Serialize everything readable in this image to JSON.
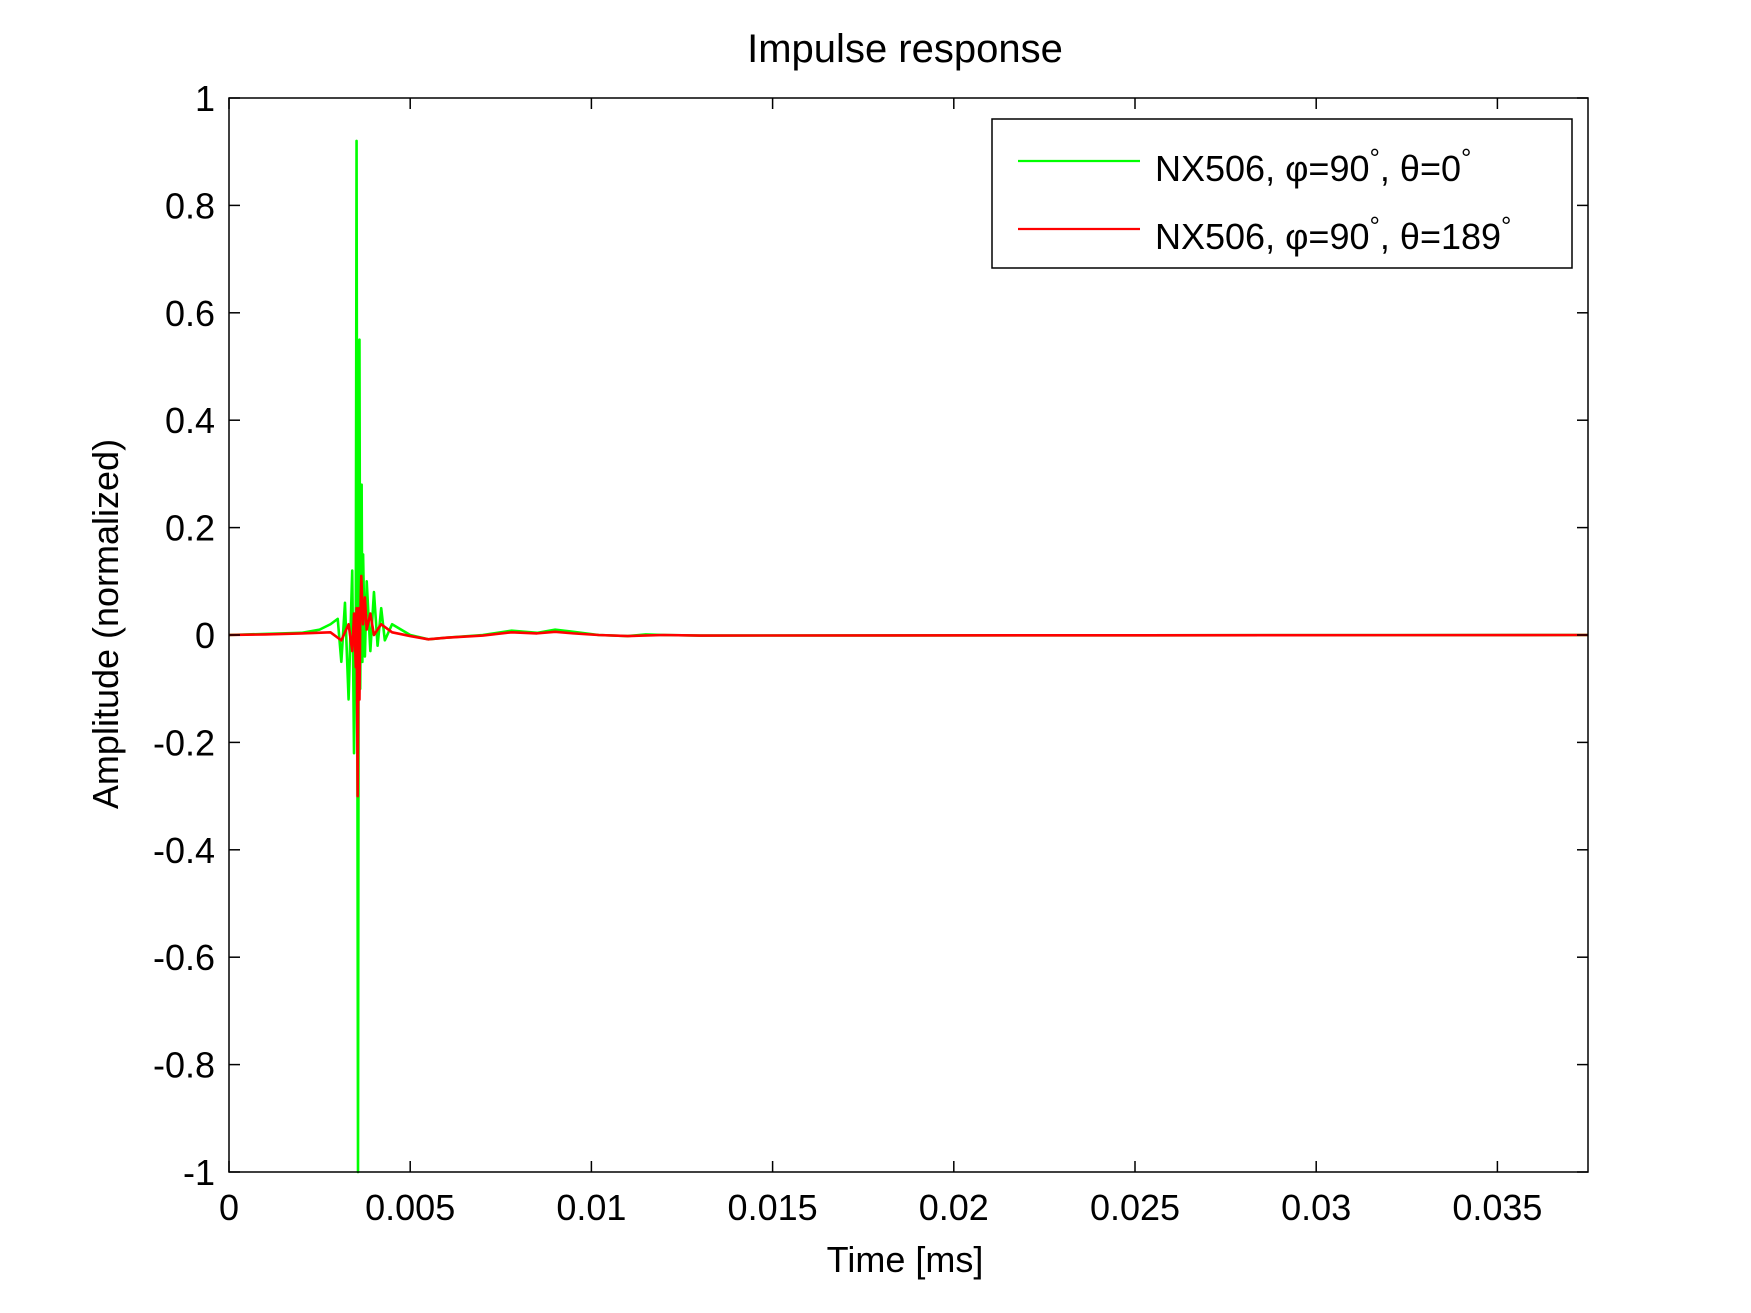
{
  "chart_data": {
    "type": "line",
    "title": "Impulse response",
    "xlabel": "Time [ms]",
    "ylabel": "Amplitude (normalized)",
    "xlim": [
      0,
      0.0375
    ],
    "ylim": [
      -1,
      1
    ],
    "xticks": [
      0,
      0.005,
      0.01,
      0.015,
      0.02,
      0.025,
      0.03,
      0.035
    ],
    "xtick_labels": [
      "0",
      "0.005",
      "0.01",
      "0.015",
      "0.02",
      "0.025",
      "0.03",
      "0.035"
    ],
    "yticks": [
      1,
      0.8,
      0.6,
      0.4,
      0.2,
      0,
      -0.2,
      -0.4,
      -0.6,
      -0.8,
      -1
    ],
    "ytick_labels": [
      "1",
      "0.8",
      "0.6",
      "0.4",
      "0.2",
      "0",
      "-0.2",
      "-0.4",
      "-0.6",
      "-0.8",
      "-1"
    ],
    "grid": false,
    "legend_position": "top-right",
    "series": [
      {
        "name": "NX506, φ=90°, θ=0°",
        "legend_parts": [
          "NX506, ",
          "φ",
          "=90",
          "°",
          ", ",
          "θ",
          "=0",
          "°"
        ],
        "color": "#00ff00",
        "points": [
          [
            0,
            0
          ],
          [
            0.001,
            0.002
          ],
          [
            0.002,
            0.004
          ],
          [
            0.0025,
            0.01
          ],
          [
            0.0028,
            0.02
          ],
          [
            0.003,
            0.03
          ],
          [
            0.0031,
            -0.05
          ],
          [
            0.0032,
            0.06
          ],
          [
            0.0033,
            -0.12
          ],
          [
            0.0034,
            0.12
          ],
          [
            0.00345,
            -0.22
          ],
          [
            0.0035,
            0.05
          ],
          [
            0.00352,
            0.92
          ],
          [
            0.00354,
            -0.05
          ],
          [
            0.00356,
            -1.0
          ],
          [
            0.00358,
            0.2
          ],
          [
            0.0036,
            0.55
          ],
          [
            0.00362,
            -0.1
          ],
          [
            0.00364,
            0.1
          ],
          [
            0.00366,
            0.28
          ],
          [
            0.00368,
            -0.05
          ],
          [
            0.0037,
            0.15
          ],
          [
            0.00375,
            -0.04
          ],
          [
            0.0038,
            0.1
          ],
          [
            0.0039,
            -0.03
          ],
          [
            0.004,
            0.08
          ],
          [
            0.0041,
            -0.02
          ],
          [
            0.0042,
            0.05
          ],
          [
            0.0043,
            -0.01
          ],
          [
            0.0045,
            0.02
          ],
          [
            0.005,
            0.0
          ],
          [
            0.0055,
            -0.008
          ],
          [
            0.006,
            -0.005
          ],
          [
            0.007,
            0.0
          ],
          [
            0.0078,
            0.008
          ],
          [
            0.0085,
            0.004
          ],
          [
            0.009,
            0.01
          ],
          [
            0.0095,
            0.006
          ],
          [
            0.0102,
            0.0
          ],
          [
            0.011,
            -0.002
          ],
          [
            0.0115,
            0.001
          ],
          [
            0.012,
            0.0
          ],
          [
            0.013,
            -0.001
          ],
          [
            0.0375,
            0
          ]
        ]
      },
      {
        "name": "NX506, φ=90°, θ=189°",
        "legend_parts": [
          "NX506, ",
          "φ",
          "=90",
          "°",
          ", ",
          "θ",
          "=189",
          "°"
        ],
        "color": "#ff0000",
        "points": [
          [
            0,
            0
          ],
          [
            0.001,
            0.001
          ],
          [
            0.002,
            0.003
          ],
          [
            0.0028,
            0.005
          ],
          [
            0.0031,
            -0.01
          ],
          [
            0.0033,
            0.02
          ],
          [
            0.0034,
            -0.03
          ],
          [
            0.00345,
            0.04
          ],
          [
            0.0035,
            -0.06
          ],
          [
            0.00352,
            0.05
          ],
          [
            0.00355,
            -0.3
          ],
          [
            0.00358,
            0.05
          ],
          [
            0.0036,
            -0.12
          ],
          [
            0.00362,
            0.02
          ],
          [
            0.00365,
            0.11
          ],
          [
            0.0037,
            0.02
          ],
          [
            0.00375,
            0.07
          ],
          [
            0.0038,
            0.01
          ],
          [
            0.0039,
            0.04
          ],
          [
            0.004,
            0.0
          ],
          [
            0.0042,
            0.02
          ],
          [
            0.0045,
            0.005
          ],
          [
            0.005,
            -0.002
          ],
          [
            0.0055,
            -0.008
          ],
          [
            0.006,
            -0.005
          ],
          [
            0.007,
            -0.001
          ],
          [
            0.0078,
            0.005
          ],
          [
            0.0085,
            0.003
          ],
          [
            0.009,
            0.006
          ],
          [
            0.0095,
            0.003
          ],
          [
            0.0102,
            0.0
          ],
          [
            0.011,
            -0.002
          ],
          [
            0.012,
            0.0
          ],
          [
            0.013,
            -0.001
          ],
          [
            0.0375,
            0
          ]
        ]
      }
    ]
  }
}
